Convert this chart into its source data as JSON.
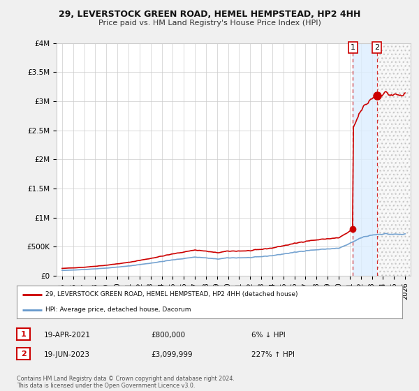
{
  "title": "29, LEVERSTOCK GREEN ROAD, HEMEL HEMPSTEAD, HP2 4HH",
  "subtitle": "Price paid vs. HM Land Registry's House Price Index (HPI)",
  "legend_line1": "29, LEVERSTOCK GREEN ROAD, HEMEL HEMPSTEAD, HP2 4HH (detached house)",
  "legend_line2": "HPI: Average price, detached house, Dacorum",
  "annotation1_date": "19-APR-2021",
  "annotation1_price": "£800,000",
  "annotation1_pct": "6% ↓ HPI",
  "annotation2_date": "19-JUN-2023",
  "annotation2_price": "£3,099,999",
  "annotation2_pct": "227% ↑ HPI",
  "footer": "Contains HM Land Registry data © Crown copyright and database right 2024.\nThis data is licensed under the Open Government Licence v3.0.",
  "sale1_x": 2021.29,
  "sale1_y": 800000,
  "sale2_x": 2023.46,
  "sale2_y": 3099999,
  "hpi_color": "#6699cc",
  "price_color": "#cc0000",
  "marker_box_color": "#cc0000",
  "shade_color": "#ddeeff",
  "hatch_color": "#cccccc",
  "xlim": [
    1994.5,
    2026.5
  ],
  "ylim": [
    0,
    4000000
  ],
  "yticks": [
    0,
    500000,
    1000000,
    1500000,
    2000000,
    2500000,
    3000000,
    3500000,
    4000000
  ],
  "ytick_labels": [
    "£0",
    "£500K",
    "£1M",
    "£1.5M",
    "£2M",
    "£2.5M",
    "£3M",
    "£3.5M",
    "£4M"
  ],
  "xticks": [
    1995,
    1996,
    1997,
    1998,
    1999,
    2000,
    2001,
    2002,
    2003,
    2004,
    2005,
    2006,
    2007,
    2008,
    2009,
    2010,
    2011,
    2012,
    2013,
    2014,
    2015,
    2016,
    2017,
    2018,
    2019,
    2020,
    2021,
    2022,
    2023,
    2024,
    2025,
    2026
  ],
  "bg_color": "#f0f0f0",
  "plot_bg_color": "#ffffff",
  "grid_color": "#cccccc"
}
